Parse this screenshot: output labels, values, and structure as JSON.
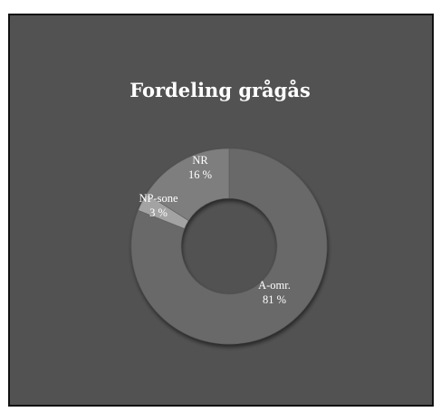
{
  "chart_data": {
    "type": "pie",
    "title": "Fordeling grågås",
    "categories": [
      "A-omr.",
      "NP-sone",
      "NR"
    ],
    "values": [
      81,
      3,
      16
    ],
    "value_labels": [
      "81 %",
      "3 %",
      "16 %"
    ],
    "colors": {
      "A-omr.": "#696969",
      "NP-sone": "#a3a3a3",
      "NR": "#7e7e7e",
      "background": "#525252",
      "text": "#ffffff"
    }
  }
}
